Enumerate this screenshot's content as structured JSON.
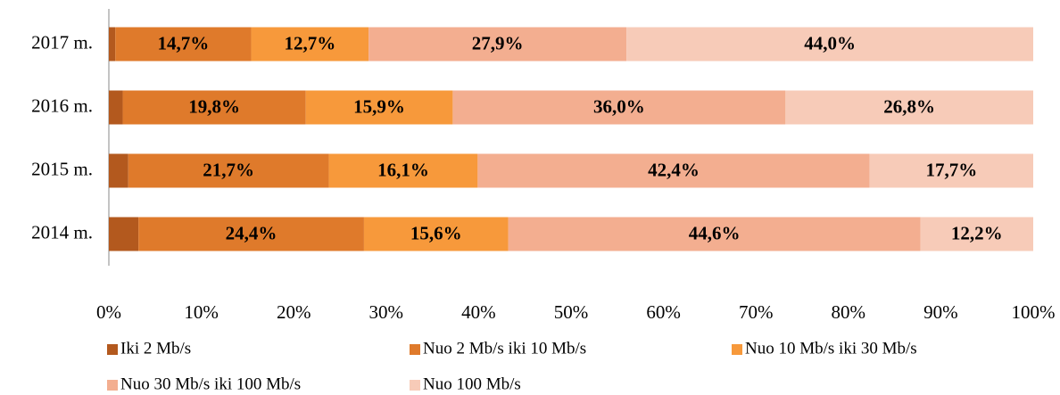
{
  "chart_data": {
    "type": "stacked-bar-horizontal",
    "categories": [
      "2014 m.",
      "2015 m.",
      "2016 m.",
      "2017 m."
    ],
    "series": [
      {
        "name": "Iki 2 Mb/s",
        "color": "#b3591e",
        "values": [
          3.2,
          2.1,
          1.5,
          0.7
        ]
      },
      {
        "name": "Nuo 2 Mb/s iki 10 Mb/s",
        "color": "#df7a2b",
        "values": [
          24.4,
          21.7,
          19.8,
          14.7
        ],
        "value_labels": [
          "24,4%",
          "21,7%",
          "19,8%",
          "14,7%"
        ]
      },
      {
        "name": "Nuo 10 Mb/s iki 30 Mb/s",
        "color": "#f7993b",
        "values": [
          15.6,
          16.1,
          15.9,
          12.7
        ],
        "value_labels": [
          "15,6%",
          "16,1%",
          "15,9%",
          "12,7%"
        ]
      },
      {
        "name": "Nuo 30 Mb/s iki 100 Mb/s",
        "color": "#f3ae90",
        "values": [
          44.6,
          42.4,
          36.0,
          27.9
        ],
        "value_labels": [
          "44,6%",
          "42,4%",
          "36,0%",
          "27,9%"
        ]
      },
      {
        "name": "Nuo 100 Mb/s",
        "color": "#f7cbb8",
        "values": [
          12.2,
          17.7,
          26.8,
          44.0
        ],
        "value_labels": [
          "12,2%",
          "17,7%",
          "26,8%",
          "44,0%"
        ]
      }
    ],
    "xlim": [
      0,
      100
    ],
    "xticks": [
      {
        "value": 0,
        "label": "0%"
      },
      {
        "value": 10,
        "label": "10%"
      },
      {
        "value": 20,
        "label": "20%"
      },
      {
        "value": 30,
        "label": "30%"
      },
      {
        "value": 40,
        "label": "40%"
      },
      {
        "value": 50,
        "label": "50%"
      },
      {
        "value": 60,
        "label": "60%"
      },
      {
        "value": 70,
        "label": "70%"
      },
      {
        "value": 80,
        "label": "80%"
      },
      {
        "value": 90,
        "label": "90%"
      },
      {
        "value": 100,
        "label": "100%"
      }
    ],
    "legend": "bottom"
  }
}
